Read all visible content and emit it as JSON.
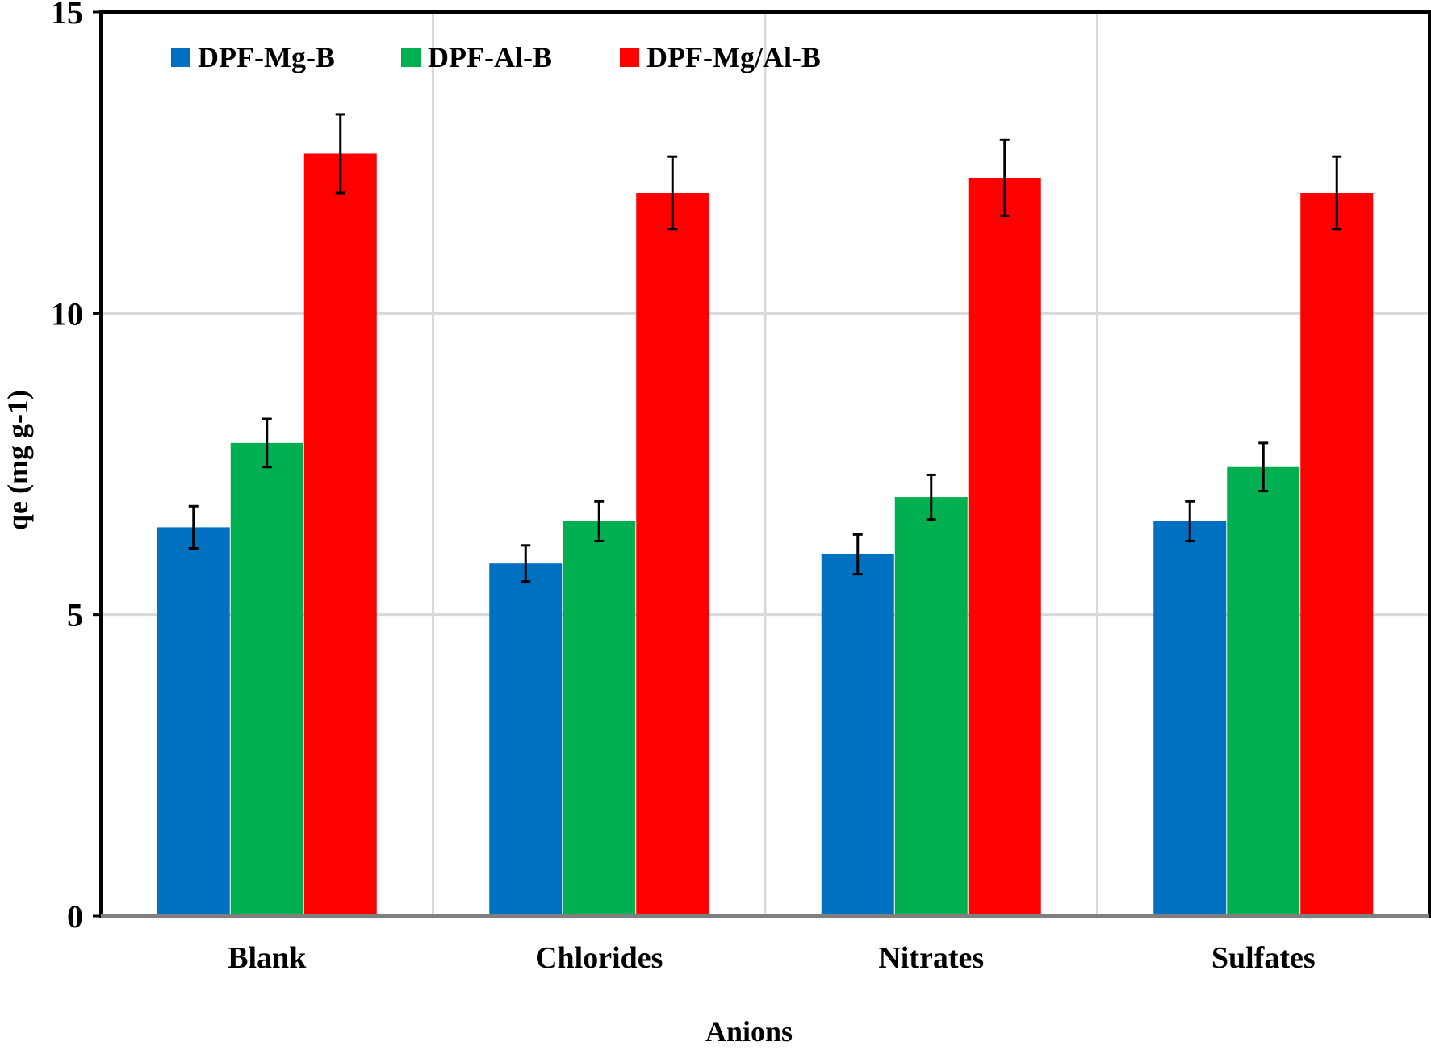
{
  "chart_data": {
    "type": "bar",
    "categories": [
      "Blank",
      "Chlorides",
      "Nitrates",
      "Sulfates"
    ],
    "series": [
      {
        "name": "DPF-Mg-B",
        "color": "#0070C0",
        "values": [
          6.45,
          5.85,
          6.0,
          6.55
        ],
        "errors": [
          0.35,
          0.3,
          0.33,
          0.33
        ]
      },
      {
        "name": "DPF-Al-B",
        "color": "#00B050",
        "values": [
          7.85,
          6.55,
          6.95,
          7.45
        ],
        "errors": [
          0.4,
          0.33,
          0.37,
          0.4
        ]
      },
      {
        "name": "DPF-Mg/Al-B",
        "color": "#FF0000",
        "values": [
          12.65,
          12.0,
          12.25,
          12.0
        ],
        "errors": [
          0.65,
          0.6,
          0.63,
          0.6
        ]
      }
    ],
    "xlabel": "Anions",
    "ylabel": "qe (mg g-1)",
    "ylim": [
      0,
      15
    ],
    "yticks": [
      "0",
      "5",
      "10",
      "15"
    ],
    "grid": true,
    "legend_position": "top-left"
  }
}
